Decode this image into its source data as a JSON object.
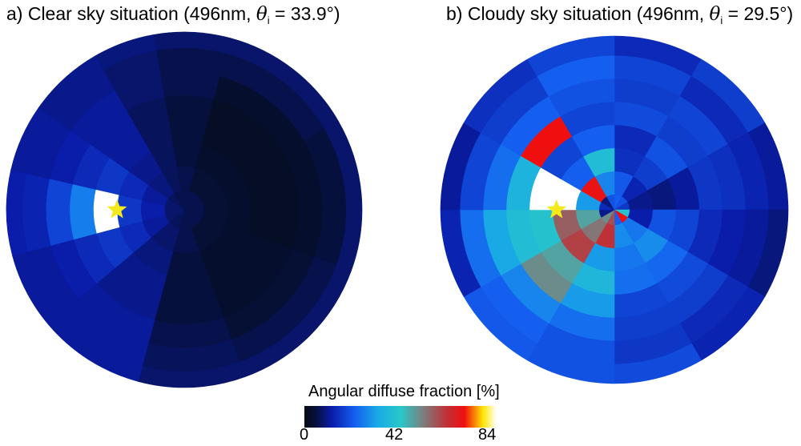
{
  "panels": [
    {
      "prefix": "a) Clear sky situation (496nm, ",
      "theta_symbol": "θ",
      "theta_subscript": "i",
      "suffix": " = 33.9°)",
      "sun_marker": "star"
    },
    {
      "prefix": "b) Cloudy sky situation (496nm, ",
      "theta_symbol": "θ",
      "theta_subscript": "i",
      "suffix": " = 29.5°)",
      "sun_marker": "star"
    }
  ],
  "colorbar": {
    "label": "Angular diffuse fraction [%]",
    "ticks": [
      "0",
      "42",
      "84"
    ],
    "range": [
      0,
      84
    ],
    "colormap": "jet-like"
  },
  "chart_data": [
    {
      "type": "heatmap",
      "projection": "polar sky map",
      "title": "a) Clear sky situation (496nm, θi = 33.9°)",
      "value_unit": "%",
      "value_range": [
        0,
        84
      ],
      "sun_position_deg": {
        "azimuth": 270,
        "zenith": 34
      },
      "ring_zenith_edges_deg": [
        0,
        10,
        22,
        34,
        46,
        58,
        70,
        82,
        90
      ],
      "sectors": [
        {
          "az": [
            350,
            15
          ],
          "rings": [
            6,
            6,
            5,
            5,
            5,
            6,
            6,
            8
          ]
        },
        {
          "az": [
            15,
            60
          ],
          "rings": [
            6,
            4,
            3,
            2,
            2,
            3,
            6,
            8
          ]
        },
        {
          "az": [
            60,
            110
          ],
          "rings": [
            6,
            4,
            3,
            2,
            2,
            3,
            5,
            8
          ]
        },
        {
          "az": [
            110,
            160
          ],
          "rings": [
            6,
            4,
            3,
            3,
            3,
            4,
            6,
            8
          ]
        },
        {
          "az": [
            160,
            195
          ],
          "rings": [
            6,
            6,
            5,
            5,
            5,
            6,
            7,
            8
          ]
        },
        {
          "az": [
            195,
            230
          ],
          "rings": [
            7,
            8,
            9,
            10,
            10,
            11,
            11,
            11
          ]
        },
        {
          "az": [
            230,
            255
          ],
          "rings": [
            8,
            11,
            14,
            16,
            14,
            12,
            11,
            11
          ]
        },
        {
          "az": [
            255,
            283
          ],
          "rings": [
            8,
            12,
            16,
            84,
            26,
            18,
            13,
            12
          ]
        },
        {
          "az": [
            283,
            305
          ],
          "rings": [
            8,
            11,
            14,
            16,
            14,
            12,
            11,
            11
          ]
        },
        {
          "az": [
            305,
            330
          ],
          "rings": [
            7,
            9,
            10,
            11,
            11,
            11,
            10,
            10
          ]
        },
        {
          "az": [
            330,
            350
          ],
          "rings": [
            6,
            7,
            7,
            7,
            7,
            8,
            8,
            9
          ]
        }
      ]
    },
    {
      "type": "heatmap",
      "projection": "polar sky map",
      "title": "b) Cloudy sky situation (496nm, θi = 29.5°)",
      "value_unit": "%",
      "value_range": [
        0,
        84
      ],
      "sun_position_deg": {
        "azimuth": 270,
        "zenith": 30
      },
      "ring_zenith_edges_deg": [
        0,
        8,
        20,
        32,
        44,
        56,
        68,
        80,
        90
      ],
      "sectors": [
        {
          "az": [
            0,
            30
          ],
          "rings": [
            22,
            21,
            15,
            14,
            19,
            17,
            18,
            14
          ]
        },
        {
          "az": [
            30,
            60
          ],
          "rings": [
            20,
            13,
            17,
            20,
            17,
            18,
            14,
            17
          ]
        },
        {
          "az": [
            60,
            90
          ],
          "rings": [
            16,
            10,
            9,
            11,
            16,
            15,
            13,
            11
          ]
        },
        {
          "az": [
            90,
            120
          ],
          "rings": [
            40,
            12,
            20,
            18,
            14,
            12,
            11,
            9
          ]
        },
        {
          "az": [
            120,
            150
          ],
          "rings": [
            70,
            25,
            28,
            23,
            19,
            17,
            14,
            13
          ]
        },
        {
          "az": [
            150,
            180
          ],
          "rings": [
            22,
            28,
            25,
            24,
            18,
            17,
            16,
            19
          ]
        },
        {
          "az": [
            180,
            210
          ],
          "rings": [
            58,
            62,
            30,
            36,
            30,
            24,
            20,
            20
          ]
        },
        {
          "az": [
            210,
            240
          ],
          "rings": [
            50,
            53,
            60,
            47,
            50,
            27,
            22,
            21
          ]
        },
        {
          "az": [
            240,
            270
          ],
          "rings": [
            10,
            47,
            56,
            40,
            38,
            32,
            24,
            13
          ]
        },
        {
          "az": [
            270,
            300
          ],
          "rings": [
            14,
            30,
            84,
            84,
            35,
            24,
            18,
            11
          ]
        },
        {
          "az": [
            300,
            330
          ],
          "rings": [
            9,
            69,
            22,
            18,
            70,
            22,
            17,
            15
          ]
        },
        {
          "az": [
            330,
            360
          ],
          "rings": [
            20,
            27,
            38,
            22,
            18,
            20,
            22,
            18
          ]
        }
      ]
    }
  ]
}
